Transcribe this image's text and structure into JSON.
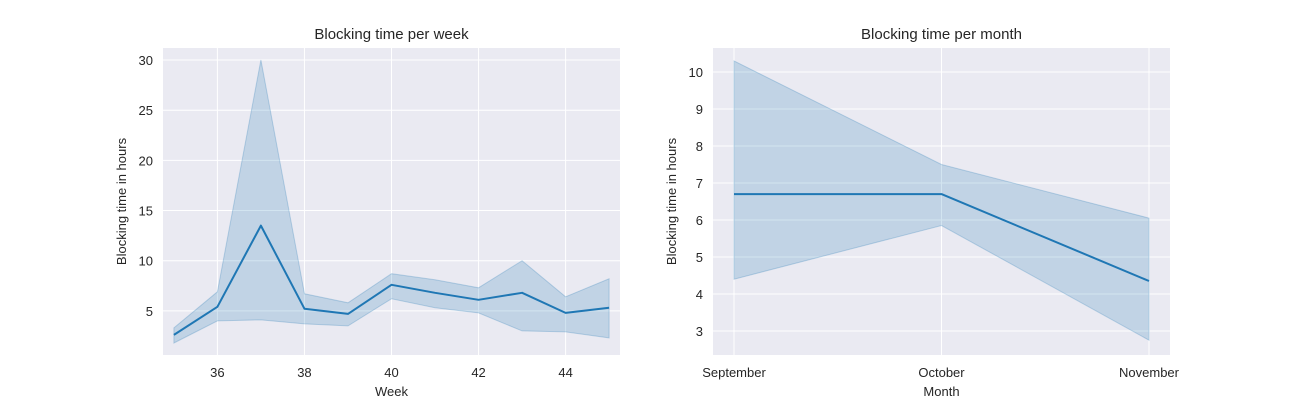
{
  "chart_data": [
    {
      "type": "line",
      "title": "Blocking time per week",
      "xlabel": "Week",
      "ylabel": "Blocking time in hours",
      "xlim": [
        34.75,
        45.25
      ],
      "ylim": [
        0.6,
        31.2
      ],
      "xticks": [
        36,
        38,
        40,
        42,
        44
      ],
      "yticks": [
        5,
        10,
        15,
        20,
        25,
        30
      ],
      "grid": true,
      "colors": {
        "line": "#1f77b4",
        "band": "#1f77b4",
        "background": "#eaeaf2"
      },
      "x": [
        35,
        36,
        37,
        38,
        39,
        40,
        41,
        42,
        43,
        44,
        45
      ],
      "series": [
        {
          "values": [
            2.6,
            5.4,
            13.5,
            5.2,
            4.7,
            7.6,
            6.8,
            6.1,
            6.8,
            4.8,
            5.3
          ],
          "ci_upper": [
            3.3,
            6.9,
            30.0,
            6.7,
            5.8,
            8.7,
            8.1,
            7.3,
            10.0,
            6.4,
            8.2
          ],
          "ci_lower": [
            1.8,
            4.0,
            4.1,
            3.7,
            3.5,
            6.2,
            5.3,
            4.8,
            3.0,
            2.9,
            2.3
          ]
        }
      ]
    },
    {
      "type": "line",
      "title": "Blocking time per month",
      "xlabel": "Month",
      "ylabel": "Blocking time in hours",
      "categories": [
        "September",
        "October",
        "November"
      ],
      "ylim": [
        2.35,
        10.65
      ],
      "yticks": [
        3,
        4,
        5,
        6,
        7,
        8,
        9,
        10
      ],
      "grid": true,
      "colors": {
        "line": "#1f77b4",
        "band": "#1f77b4",
        "background": "#eaeaf2"
      },
      "series": [
        {
          "values": [
            6.7,
            6.7,
            4.35
          ],
          "ci_upper": [
            10.3,
            7.5,
            6.05
          ],
          "ci_lower": [
            4.4,
            5.85,
            2.75
          ]
        }
      ]
    }
  ]
}
